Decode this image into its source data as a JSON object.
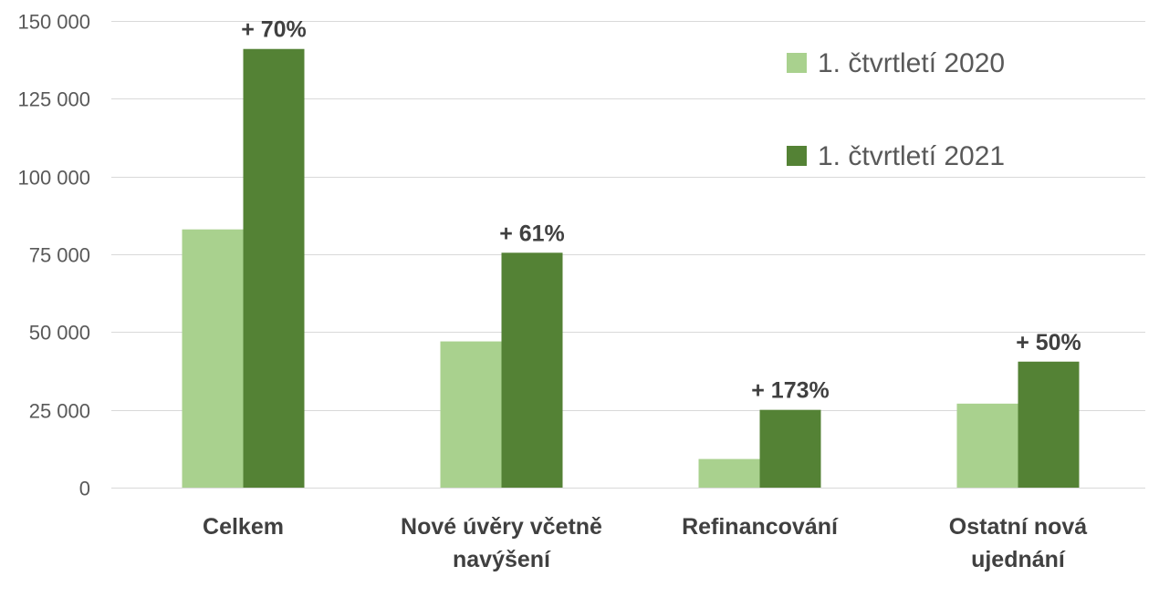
{
  "chart_data": {
    "type": "bar",
    "title": "",
    "xlabel": "",
    "ylabel": "",
    "ylim": [
      0,
      150000
    ],
    "y_ticks": [
      0,
      25000,
      50000,
      75000,
      100000,
      125000,
      150000
    ],
    "y_tick_labels": [
      "0",
      "25 000",
      "50 000",
      "75 000",
      "100 000",
      "125 000",
      "150 000"
    ],
    "grid": true,
    "legend_position": "top-right",
    "categories": [
      [
        "Celkem"
      ],
      [
        "Nové úvěry včetně",
        "navýšení"
      ],
      [
        "Refinancování"
      ],
      [
        "Ostatní nová",
        "ujednání"
      ]
    ],
    "series": [
      {
        "name": "1. čtvrtletí 2020",
        "color": "#a9d18e",
        "values": [
          83000,
          47000,
          9200,
          27000
        ]
      },
      {
        "name": "1. čtvrtletí 2021",
        "color": "#548235",
        "values": [
          141000,
          75500,
          25000,
          40500
        ]
      }
    ],
    "annotations": [
      "+ 70%",
      "+ 61%",
      "+ 173%",
      "+ 50%"
    ]
  }
}
